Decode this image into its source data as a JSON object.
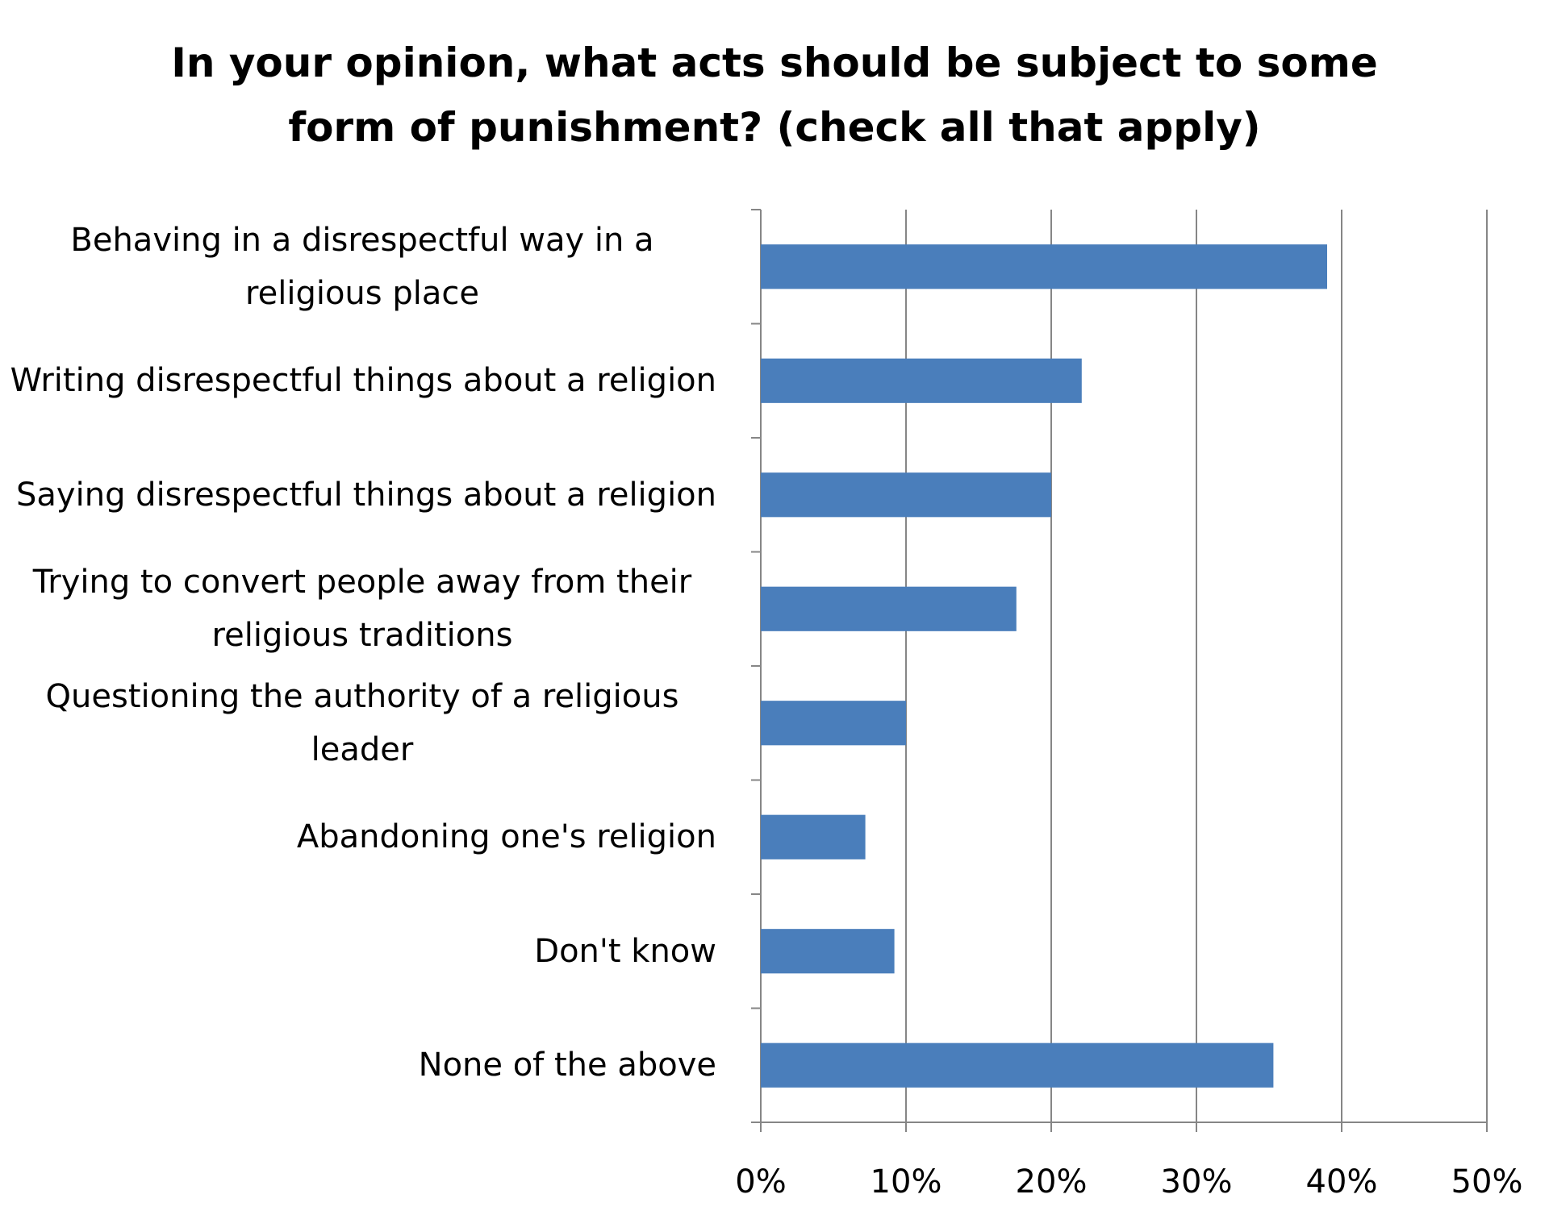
{
  "chart_data": {
    "type": "bar",
    "orientation": "horizontal",
    "title": "In your opinion, what acts should be subject to some form of punishment? (check all that apply)",
    "categories": [
      "Behaving in a disrespectful way in a religious place",
      "Writing disrespectful things about a religion",
      "Saying disrespectful things about a religion",
      "Trying to convert people away from their religious traditions",
      "Questioning the authority of a religious leader",
      "Abandoning one's religion",
      "Don't know",
      "None of the above"
    ],
    "values": [
      39.0,
      22.1,
      20.0,
      17.6,
      10.0,
      7.2,
      9.2,
      35.3
    ],
    "color": "#4a7ebb",
    "xlim": [
      0,
      50
    ],
    "xticks": [
      {
        "value": 0,
        "label": "0%"
      },
      {
        "value": 10,
        "label": "10%"
      },
      {
        "value": 20,
        "label": "20%"
      },
      {
        "value": 30,
        "label": "30%"
      },
      {
        "value": 40,
        "label": "40%"
      },
      {
        "value": 50,
        "label": "50%"
      }
    ],
    "grid": true
  }
}
